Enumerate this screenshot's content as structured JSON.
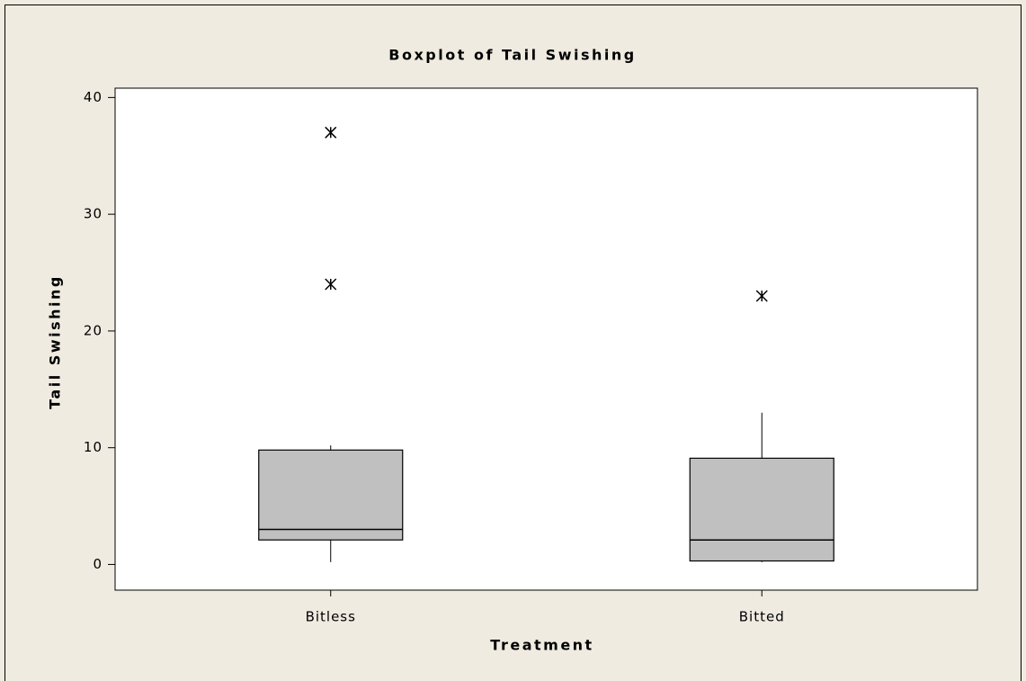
{
  "chart_data": {
    "type": "boxplot",
    "title": "Boxplot of Tail Swishing",
    "x_label": "Treatment",
    "y_label": "Tail Swishing",
    "categories": [
      "Bitless",
      "Bitted"
    ],
    "boxes": [
      {
        "min": 0.2,
        "q1": 2.1,
        "median": 3,
        "q3": 9.8,
        "max": 10.2,
        "outliers": [
          24,
          37
        ]
      },
      {
        "min": 0.2,
        "q1": 0.3,
        "median": 2.1,
        "q3": 9.1,
        "max": 13,
        "outliers": [
          23
        ]
      }
    ],
    "color": "#c0c0c0",
    "ylim": [
      -2.2,
      40.8
    ],
    "yticks": [
      0,
      10,
      20,
      30,
      40
    ]
  }
}
